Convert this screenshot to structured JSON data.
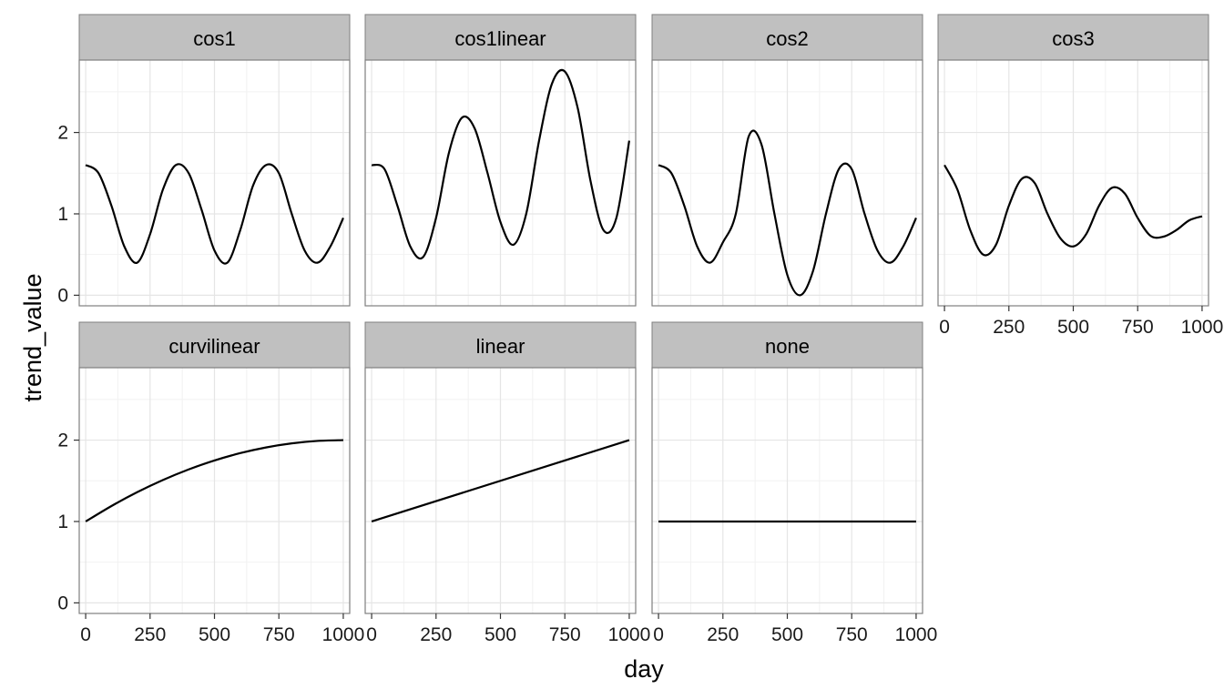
{
  "chart_data": {
    "type": "line",
    "xlabel": "day",
    "ylabel": "trend_value",
    "xlim": [
      -25,
      1025
    ],
    "ylim": [
      -0.13,
      2.89
    ],
    "x_ticks": [
      0,
      250,
      500,
      750,
      1000
    ],
    "x_tick_labels": [
      "0",
      "250",
      "500",
      "750",
      "1000"
    ],
    "y_ticks": [
      0,
      1,
      2
    ],
    "y_tick_labels": [
      "0",
      "1",
      "2"
    ],
    "grid": true,
    "colors": {
      "strip_background": "#c0c0c0",
      "panel_border": "#7f7f7f",
      "grid_major": "#e5e5e5",
      "grid_minor": "#f2f2f2",
      "line": "#000000"
    },
    "panels": [
      {
        "name": "cos1",
        "x": [
          0,
          50,
          100,
          150,
          200,
          250,
          300,
          350,
          400,
          450,
          500,
          550,
          600,
          650,
          700,
          750,
          800,
          850,
          900,
          950,
          1000
        ],
        "y": [
          1.6,
          1.5,
          1.1,
          0.6,
          0.4,
          0.75,
          1.3,
          1.6,
          1.5,
          1.05,
          0.55,
          0.4,
          0.8,
          1.35,
          1.6,
          1.5,
          1.0,
          0.55,
          0.4,
          0.6,
          0.95
        ]
      },
      {
        "name": "cos1linear",
        "x": [
          0,
          50,
          100,
          150,
          200,
          250,
          300,
          350,
          400,
          450,
          500,
          550,
          600,
          650,
          700,
          750,
          800,
          850,
          900,
          950,
          1000
        ],
        "y": [
          1.6,
          1.55,
          1.1,
          0.6,
          0.47,
          0.95,
          1.75,
          2.18,
          2.05,
          1.5,
          0.9,
          0.62,
          1.0,
          1.9,
          2.6,
          2.75,
          2.3,
          1.4,
          0.8,
          0.95,
          1.9
        ]
      },
      {
        "name": "cos2",
        "x": [
          0,
          50,
          100,
          150,
          200,
          250,
          300,
          350,
          400,
          450,
          500,
          550,
          600,
          650,
          700,
          750,
          800,
          850,
          900,
          950,
          1000
        ],
        "y": [
          1.6,
          1.5,
          1.1,
          0.6,
          0.4,
          0.65,
          1.0,
          1.95,
          1.85,
          1.0,
          0.25,
          0.0,
          0.3,
          1.0,
          1.55,
          1.55,
          1.0,
          0.55,
          0.4,
          0.6,
          0.95
        ]
      },
      {
        "name": "cos3",
        "x": [
          0,
          50,
          100,
          150,
          200,
          250,
          300,
          350,
          400,
          450,
          500,
          550,
          600,
          650,
          700,
          750,
          800,
          850,
          900,
          950,
          1000
        ],
        "y": [
          1.6,
          1.3,
          0.8,
          0.5,
          0.62,
          1.1,
          1.43,
          1.38,
          1.0,
          0.7,
          0.6,
          0.75,
          1.1,
          1.32,
          1.25,
          0.95,
          0.73,
          0.72,
          0.8,
          0.92,
          0.97
        ]
      },
      {
        "name": "curvilinear",
        "x": [
          0,
          100,
          200,
          300,
          400,
          500,
          600,
          700,
          800,
          900,
          1000
        ],
        "y": [
          1.0,
          1.19,
          1.36,
          1.51,
          1.64,
          1.75,
          1.84,
          1.91,
          1.96,
          1.99,
          2.0
        ]
      },
      {
        "name": "linear",
        "x": [
          0,
          1000
        ],
        "y": [
          1.0,
          2.0
        ]
      },
      {
        "name": "none",
        "x": [
          0,
          1000
        ],
        "y": [
          1.0,
          1.0
        ]
      }
    ]
  }
}
